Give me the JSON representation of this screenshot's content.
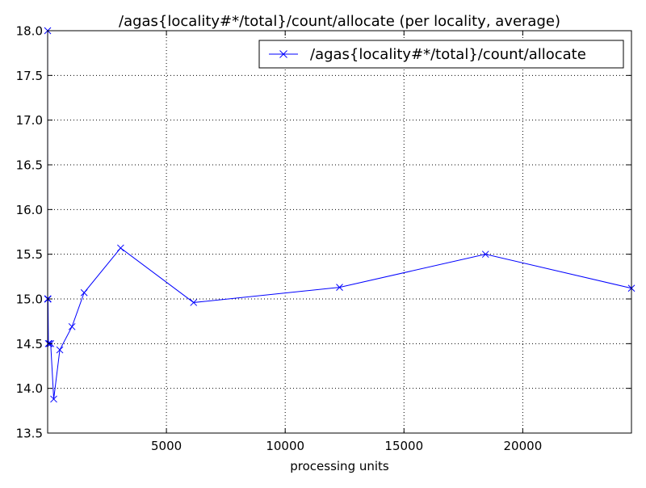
{
  "chart_data": {
    "type": "line",
    "title": "/agas{locality#*/total}/count/allocate (per locality, average)",
    "xlabel": "processing units",
    "ylabel": "",
    "xlim": [
      0,
      24576
    ],
    "ylim": [
      13.5,
      18.0
    ],
    "grid": true,
    "legend_position": "top-right",
    "x_ticks": [
      5000,
      10000,
      15000,
      20000
    ],
    "x_tick_labels": [
      "5000",
      "10000",
      "15000",
      "20000"
    ],
    "y_ticks": [
      13.5,
      14.0,
      14.5,
      15.0,
      15.5,
      16.0,
      16.5,
      17.0,
      17.5,
      18.0
    ],
    "y_tick_labels": [
      "13.5",
      "14.0",
      "14.5",
      "15.0",
      "15.5",
      "16.0",
      "16.5",
      "17.0",
      "17.5",
      "18.0"
    ],
    "series": [
      {
        "name": "/agas{locality#*/total}/count/allocate",
        "color": "#0000ff",
        "marker": "x",
        "x": [
          1,
          2,
          4,
          8,
          16,
          32,
          64,
          128,
          256,
          512,
          1024,
          1536,
          3072,
          6144,
          12288,
          18432,
          24576
        ],
        "y": [
          18.0,
          15.0,
          15.0,
          15.0,
          15.0,
          14.5,
          14.5,
          14.5,
          13.88,
          14.43,
          14.69,
          15.07,
          15.57,
          14.96,
          15.13,
          15.5,
          15.12
        ]
      }
    ]
  }
}
